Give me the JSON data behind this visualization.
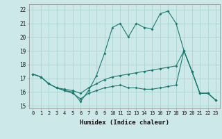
{
  "title": "",
  "xlabel": "Humidex (Indice chaleur)",
  "bg_color": "#cce8e8",
  "grid_color": "#aad4d0",
  "line_color": "#1a7a70",
  "xlim": [
    -0.5,
    23.5
  ],
  "ylim": [
    14.8,
    22.4
  ],
  "yticks": [
    15,
    16,
    17,
    18,
    19,
    20,
    21,
    22
  ],
  "xticks": [
    0,
    1,
    2,
    3,
    4,
    5,
    6,
    7,
    8,
    9,
    10,
    11,
    12,
    13,
    14,
    15,
    16,
    17,
    18,
    19,
    20,
    21,
    22,
    23
  ],
  "line1_x": [
    0,
    1,
    2,
    3,
    4,
    5,
    6,
    7,
    8,
    9,
    10,
    11,
    12,
    13,
    14,
    15,
    16,
    17,
    18,
    19,
    20,
    21,
    22,
    23
  ],
  "line1_y": [
    17.3,
    17.1,
    16.6,
    16.3,
    16.1,
    16.0,
    15.3,
    16.1,
    17.2,
    18.8,
    20.7,
    21.0,
    20.0,
    21.0,
    20.7,
    20.6,
    21.7,
    21.9,
    21.0,
    19.0,
    17.5,
    15.9,
    15.9,
    15.4
  ],
  "line2_x": [
    0,
    1,
    2,
    3,
    4,
    5,
    6,
    7,
    8,
    9,
    10,
    11,
    12,
    13,
    14,
    15,
    16,
    17,
    18,
    19,
    20,
    21,
    22,
    23
  ],
  "line2_y": [
    17.3,
    17.1,
    16.6,
    16.3,
    16.2,
    16.1,
    15.9,
    16.3,
    16.6,
    16.9,
    17.1,
    17.2,
    17.3,
    17.4,
    17.5,
    17.6,
    17.7,
    17.8,
    17.9,
    19.0,
    17.5,
    15.9,
    15.9,
    15.4
  ],
  "line3_x": [
    0,
    1,
    2,
    3,
    4,
    5,
    6,
    7,
    8,
    9,
    10,
    11,
    12,
    13,
    14,
    15,
    16,
    17,
    18,
    19,
    20,
    21,
    22,
    23
  ],
  "line3_y": [
    17.3,
    17.1,
    16.6,
    16.3,
    16.1,
    15.9,
    15.5,
    15.9,
    16.1,
    16.3,
    16.4,
    16.5,
    16.3,
    16.3,
    16.2,
    16.2,
    16.3,
    16.4,
    16.5,
    19.0,
    17.5,
    15.9,
    15.9,
    15.4
  ]
}
